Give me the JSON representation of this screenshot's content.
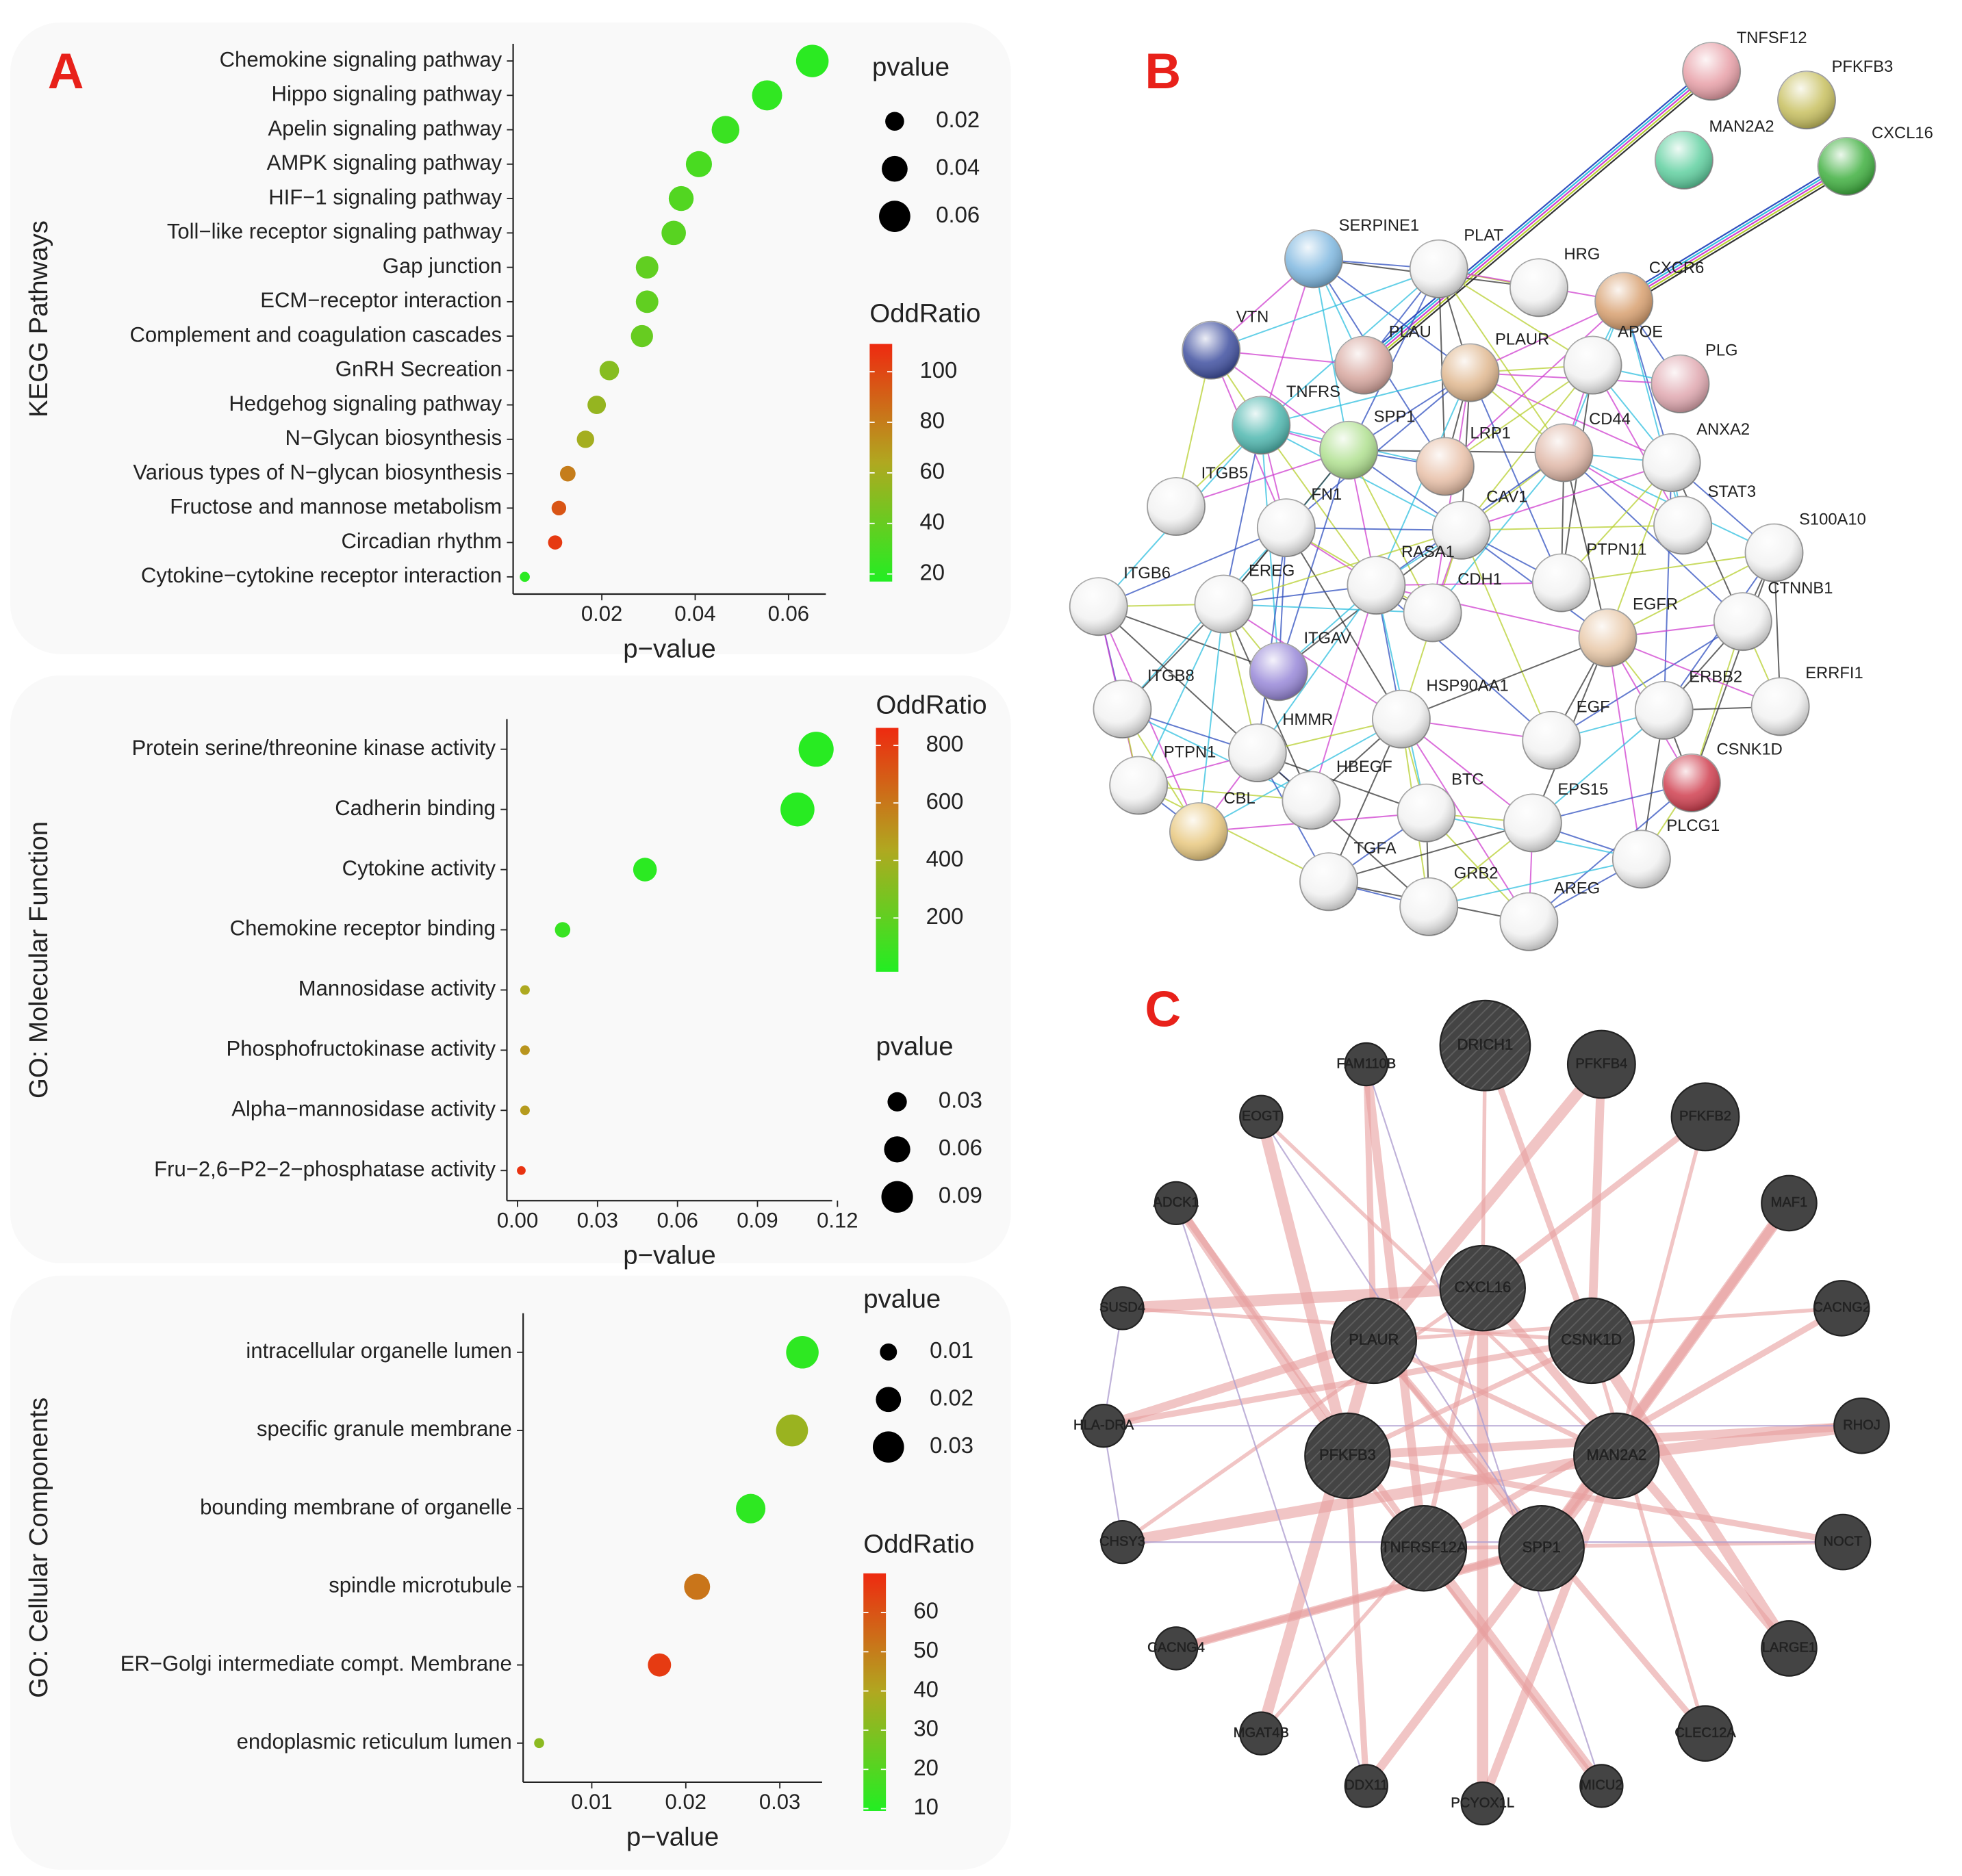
{
  "panels": [
    "A",
    "B",
    "C"
  ],
  "chart_data": [
    {
      "type": "scatter",
      "y_label": "KEGG Pathways",
      "x_label": "p−value",
      "categories": [
        "Chemokine signaling pathway",
        "Hippo signaling pathway",
        "Apelin signaling pathway",
        "AMPK signaling pathway",
        "HIF−1 signaling pathway",
        "Toll−like receptor signaling pathway",
        "Gap junction",
        "ECM−receptor interaction",
        "Complement and coagulation cascades",
        "GnRH Secreation",
        "Hedgehog signaling pathway",
        "N−Glycan biosynthesis",
        "Various types of N−glycan biosynthesis",
        "Fructose and mannose metabolism",
        "Circadian rhythm",
        "Cytokine−cytokine receptor interaction"
      ],
      "values": [
        0.0651,
        0.0554,
        0.0465,
        0.0408,
        0.037,
        0.0354,
        0.0297,
        0.0297,
        0.0286,
        0.0216,
        0.0189,
        0.0165,
        0.0127,
        0.0108,
        0.01,
        0.0035
      ],
      "odds_ratio": [
        20,
        22,
        25,
        30,
        33,
        35,
        38,
        38,
        40,
        50,
        55,
        60,
        80,
        95,
        105,
        20
      ],
      "xlim": [
        0.001,
        0.068
      ],
      "xticks": [
        0.02,
        0.04,
        0.06
      ],
      "size_legend": {
        "title": "pvalue",
        "ticks": [
          0.02,
          0.04,
          0.06
        ]
      },
      "color_legend": {
        "title": "OddRatio",
        "lim": [
          17,
          111
        ],
        "ticks": [
          20,
          40,
          60,
          80,
          100
        ],
        "colors": [
          "#22ee22",
          "#b0a820",
          "#ee2a10"
        ]
      }
    },
    {
      "type": "scatter",
      "y_label": "GO: Molecular Function",
      "x_label": "p−value",
      "categories": [
        "Protein serine/threonine kinase activity",
        "Cadherin binding",
        "Cytokine activity",
        "Chemokine receptor binding",
        "Mannosidase activity",
        "Phosphofructokinase activity",
        "Alpha−mannosidase activity",
        "Fru−2,6−P2−2−phosphatase activity"
      ],
      "values": [
        0.112,
        0.105,
        0.0478,
        0.0169,
        0.0028,
        0.0028,
        0.0028,
        0.0014
      ],
      "odds_ratio": [
        30,
        30,
        40,
        80,
        430,
        500,
        480,
        830
      ],
      "xlim": [
        -0.004,
        0.118
      ],
      "xticks": [
        {
          "value": 0,
          "label": "0.00"
        },
        0.03,
        0.06,
        0.09,
        0.12
      ],
      "size_legend": {
        "title": "pvalue",
        "ticks": [
          0.03,
          0.06,
          0.09
        ]
      },
      "color_legend": {
        "title": "OddRatio",
        "lim": [
          13,
          861
        ],
        "ticks": [
          200,
          400,
          600,
          800
        ],
        "colors": [
          "#22ee22",
          "#b0a820",
          "#ee2a10"
        ]
      }
    },
    {
      "type": "scatter",
      "y_label": "GO: Cellular Components",
      "x_label": "p−value",
      "categories": [
        "intracellular organelle lumen",
        "specific granule membrane",
        "bounding membrane of organelle",
        "spindle microtubule",
        "ER−Golgi intermediate compt. Membrane",
        "endoplasmic reticulum lumen"
      ],
      "values": [
        0.0324,
        0.0313,
        0.0269,
        0.0212,
        0.0172,
        0.0044
      ],
      "odds_ratio": [
        12,
        35,
        12,
        52,
        66,
        32
      ],
      "xlim": [
        0.0027,
        0.0345
      ],
      "xticks": [
        0.01,
        0.02,
        0.03
      ],
      "size_legend": {
        "title": "pvalue",
        "ticks": [
          0.01,
          0.02,
          0.03
        ]
      },
      "color_legend": {
        "title": "OddRatio",
        "lim": [
          9.4,
          70
        ],
        "ticks": [
          10,
          20,
          30,
          40,
          50,
          60
        ],
        "colors": [
          "#22ee22",
          "#b0a820",
          "#ee2a10"
        ]
      }
    }
  ],
  "network_b": {
    "nodes": [
      "TNFSF12",
      "PFKFB3",
      "MAN2A2",
      "CXCL16",
      "SERPINE1",
      "PLAT",
      "HRG",
      "CXCR6",
      "VTN",
      "PLAU",
      "PLAUR",
      "APOE",
      "PLG",
      "TNFRS",
      "SPP1",
      "LRP1",
      "CD44",
      "ANXA2",
      "ITGB5",
      "FN1",
      "CAV1",
      "STAT3",
      "S100A10",
      "RASA1",
      "PTPN11",
      "ITGB6",
      "EREG",
      "CDH1",
      "CTNNB1",
      "EGFR",
      "ITGAV",
      "HSP90AA1",
      "ERBB2",
      "ERRFI1",
      "ITGB8",
      "HMMR",
      "EGF",
      "PTPN1",
      "CSNK1D",
      "HBEGF",
      "BTC",
      "EPS15",
      "CBL",
      "PLCG1",
      "TGFA",
      "GRB2",
      "AREG"
    ]
  },
  "network_c": {
    "nodes": [
      "DRICH1",
      "FAM110B",
      "PFKFB4",
      "EOGT",
      "PFKFB2",
      "ADCK1",
      "MAF1",
      "SUSD4",
      "CXCL16",
      "CACNG2",
      "PLAUR",
      "CSNK1D",
      "HLA-DRA",
      "RHOJ",
      "PFKFB3",
      "MAN2A2",
      "CHSY3",
      "NOCT",
      "TNFRSF12A",
      "SPP1",
      "CACNG4",
      "LARGE1",
      "MGAT4B",
      "CLEC12A",
      "DDX11",
      "PCYOX1L",
      "MICU2"
    ]
  }
}
